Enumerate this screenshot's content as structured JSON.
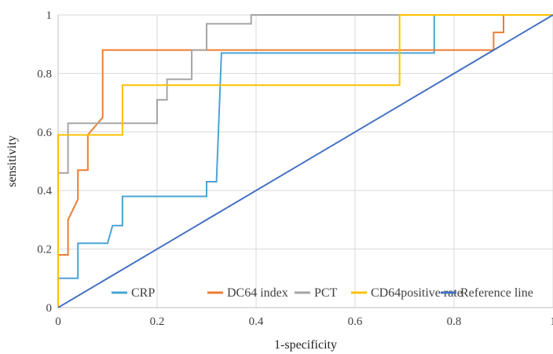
{
  "chart_data": {
    "type": "line",
    "title": "",
    "xlabel": "1-specificity",
    "ylabel": "sensitivity",
    "xlim": [
      0,
      1
    ],
    "ylim": [
      0,
      1
    ],
    "x_ticks": [
      "0",
      "0.2",
      "0.4",
      "0.6",
      "0.8",
      "1"
    ],
    "y_ticks": [
      "0",
      "0.2",
      "0.4",
      "0.6",
      "0.8",
      "1"
    ],
    "grid": true,
    "legend_position": "bottom-right",
    "series": [
      {
        "name": "CRP",
        "color": "#4BA4D4",
        "points": [
          [
            0,
            0
          ],
          [
            0,
            0.1
          ],
          [
            0.04,
            0.1
          ],
          [
            0.04,
            0.22
          ],
          [
            0.1,
            0.22
          ],
          [
            0.11,
            0.28
          ],
          [
            0.13,
            0.28
          ],
          [
            0.13,
            0.38
          ],
          [
            0.3,
            0.38
          ],
          [
            0.3,
            0.43
          ],
          [
            0.32,
            0.43
          ],
          [
            0.33,
            0.87
          ],
          [
            0.76,
            0.87
          ],
          [
            0.76,
            1
          ],
          [
            1,
            1
          ]
        ]
      },
      {
        "name": "DC64 index",
        "color": "#ED7D31",
        "points": [
          [
            0,
            0
          ],
          [
            0,
            0.18
          ],
          [
            0.02,
            0.18
          ],
          [
            0.02,
            0.3
          ],
          [
            0.04,
            0.37
          ],
          [
            0.04,
            0.47
          ],
          [
            0.06,
            0.47
          ],
          [
            0.06,
            0.59
          ],
          [
            0.09,
            0.65
          ],
          [
            0.09,
            0.88
          ],
          [
            0.88,
            0.88
          ],
          [
            0.88,
            0.94
          ],
          [
            0.9,
            0.94
          ],
          [
            0.9,
            1
          ],
          [
            1,
            1
          ]
        ]
      },
      {
        "name": "PCT",
        "color": "#A5A5A5",
        "points": [
          [
            0,
            0
          ],
          [
            0,
            0.46
          ],
          [
            0.02,
            0.46
          ],
          [
            0.02,
            0.63
          ],
          [
            0.2,
            0.63
          ],
          [
            0.2,
            0.71
          ],
          [
            0.22,
            0.71
          ],
          [
            0.22,
            0.78
          ],
          [
            0.27,
            0.78
          ],
          [
            0.27,
            0.88
          ],
          [
            0.3,
            0.88
          ],
          [
            0.3,
            0.97
          ],
          [
            0.39,
            0.97
          ],
          [
            0.39,
            1
          ],
          [
            1,
            1
          ]
        ]
      },
      {
        "name": "CD64positive rate",
        "color": "#FFC000",
        "points": [
          [
            0,
            0
          ],
          [
            0,
            0.59
          ],
          [
            0.13,
            0.59
          ],
          [
            0.13,
            0.76
          ],
          [
            0.69,
            0.76
          ],
          [
            0.69,
            1
          ],
          [
            1,
            1
          ]
        ]
      },
      {
        "name": "Reference line",
        "color": "#4472C4",
        "points": [
          [
            0,
            0
          ],
          [
            1,
            1
          ]
        ]
      }
    ]
  }
}
